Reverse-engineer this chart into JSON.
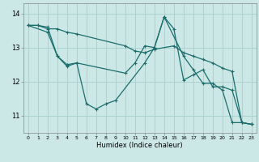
{
  "xlabel": "Humidex (Indice chaleur)",
  "xlim": [
    -0.5,
    23.5
  ],
  "ylim": [
    10.5,
    14.3
  ],
  "xticks": [
    0,
    1,
    2,
    3,
    4,
    5,
    6,
    7,
    8,
    9,
    10,
    11,
    12,
    13,
    14,
    15,
    16,
    17,
    18,
    19,
    20,
    21,
    22,
    23
  ],
  "yticks": [
    11,
    12,
    13,
    14
  ],
  "background_color": "#cce8e6",
  "grid_color": "#a8cfcd",
  "line_color": "#1a6e6e",
  "line1_x": [
    0,
    1,
    2,
    3,
    4,
    5,
    10,
    11,
    12,
    13,
    15,
    16,
    17,
    18,
    19,
    20,
    21,
    22,
    23
  ],
  "line1_y": [
    13.65,
    13.65,
    13.55,
    13.55,
    13.45,
    13.4,
    13.05,
    12.9,
    12.85,
    12.95,
    13.05,
    12.85,
    12.75,
    12.65,
    12.55,
    12.4,
    12.3,
    10.8,
    10.75
  ],
  "line2_x": [
    0,
    1,
    2,
    3,
    4,
    5,
    10,
    11,
    12,
    13,
    14,
    15,
    16,
    17,
    18,
    19,
    20,
    21,
    22,
    23
  ],
  "line2_y": [
    13.65,
    13.65,
    13.6,
    12.75,
    12.5,
    12.55,
    12.25,
    12.55,
    13.05,
    13.0,
    13.9,
    13.55,
    12.05,
    12.2,
    12.35,
    11.85,
    11.85,
    11.75,
    10.8,
    10.75
  ],
  "line3_x": [
    0,
    2,
    3,
    4,
    5,
    6,
    7,
    8,
    9,
    12,
    13,
    14,
    16,
    17,
    18,
    19,
    20,
    21,
    22,
    23
  ],
  "line3_y": [
    13.65,
    13.45,
    12.75,
    12.45,
    12.55,
    11.35,
    11.2,
    11.35,
    11.45,
    12.55,
    13.0,
    13.9,
    12.75,
    12.35,
    11.95,
    11.95,
    11.75,
    10.8,
    10.8,
    10.75
  ]
}
